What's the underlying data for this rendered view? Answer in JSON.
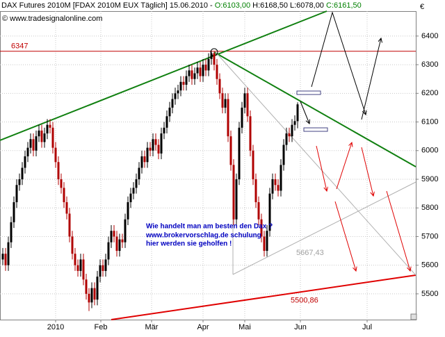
{
  "chart_data": {
    "type": "candlestick",
    "header": {
      "title": "DAX Futures 2010M [FDAX 2010M EUX  Täglich] 15.06.2010 -",
      "open_text": "O:6103,00",
      "high_low_text": "H:6168,50 L:6078,00",
      "close_text": "C:6161,50"
    },
    "copyright": "© www.tradesignalonline.com",
    "currency": "€",
    "note_lines": [
      "Wie handelt man am besten den Dax ?",
      "www.brokervorschlag.de schulung",
      "hier werden sie geholfen !"
    ],
    "up_color": "#000000",
    "down_color": "#b00000",
    "open": [
      5620,
      5640,
      5600,
      5680,
      5750,
      5820,
      5880,
      5900,
      5940,
      5980,
      6010,
      6040,
      6000,
      6050,
      6070,
      6030,
      6060,
      6090,
      6080,
      6010,
      5960,
      5900,
      5870,
      5820,
      5780,
      5700,
      5640,
      5600,
      5580,
      5620,
      5550,
      5500,
      5470,
      5520,
      5480,
      5560,
      5600,
      5580,
      5620,
      5680,
      5720,
      5700,
      5650,
      5690,
      5680,
      5760,
      5820,
      5850,
      5870,
      5900,
      5940,
      5980,
      5960,
      6010,
      6000,
      6040,
      6020,
      5990,
      6060,
      6080,
      6120,
      6150,
      6180,
      6200,
      6210,
      6240,
      6230,
      6260,
      6280,
      6250,
      6270,
      6290,
      6260,
      6300,
      6280,
      6320,
      6340,
      6300,
      6250,
      6200,
      6150,
      6180,
      6050,
      5950,
      5760,
      5900,
      6080,
      6150,
      6200,
      6120,
      6000,
      5900,
      5820,
      5760,
      5700,
      5650,
      5720,
      5850,
      5900,
      5880,
      5860,
      5950,
      6020,
      6060,
      6050,
      6090,
      6103
    ],
    "high": [
      5660,
      5660,
      5700,
      5770,
      5840,
      5900,
      5920,
      5960,
      6000,
      6030,
      6060,
      6060,
      6070,
      6090,
      6090,
      6080,
      6110,
      6110,
      6100,
      6030,
      5980,
      5920,
      5890,
      5840,
      5800,
      5720,
      5660,
      5620,
      5640,
      5640,
      5570,
      5520,
      5540,
      5540,
      5580,
      5620,
      5620,
      5640,
      5700,
      5740,
      5740,
      5720,
      5710,
      5710,
      5780,
      5840,
      5870,
      5890,
      5920,
      5960,
      6000,
      6000,
      6030,
      6030,
      6060,
      6060,
      6040,
      6080,
      6100,
      6140,
      6170,
      6200,
      6220,
      6230,
      6260,
      6260,
      6280,
      6300,
      6300,
      6290,
      6310,
      6310,
      6320,
      6320,
      6340,
      6347,
      6345,
      6320,
      6270,
      6220,
      6200,
      6200,
      6070,
      5970,
      5920,
      6100,
      6170,
      6220,
      6220,
      6140,
      6020,
      5920,
      5840,
      5780,
      5720,
      5740,
      5870,
      5920,
      5920,
      5900,
      5970,
      6040,
      6080,
      6080,
      6110,
      6123,
      6168.5
    ],
    "low": [
      5600,
      5580,
      5580,
      5660,
      5730,
      5800,
      5860,
      5880,
      5920,
      5960,
      5990,
      5980,
      5980,
      6030,
      6010,
      6010,
      6040,
      6060,
      5990,
      5940,
      5880,
      5850,
      5800,
      5760,
      5680,
      5620,
      5580,
      5560,
      5560,
      5530,
      5480,
      5440,
      5450,
      5460,
      5460,
      5540,
      5560,
      5560,
      5600,
      5660,
      5680,
      5630,
      5630,
      5660,
      5660,
      5740,
      5800,
      5830,
      5850,
      5880,
      5920,
      5940,
      5940,
      5980,
      5980,
      6000,
      5970,
      5970,
      6040,
      6060,
      6100,
      6130,
      6160,
      6180,
      6190,
      6210,
      6210,
      6240,
      6230,
      6230,
      6250,
      6240,
      6240,
      6260,
      6260,
      6300,
      6280,
      6230,
      6180,
      6130,
      6130,
      6030,
      5930,
      5740,
      5740,
      5880,
      6060,
      6130,
      6100,
      5980,
      5880,
      5800,
      5740,
      5680,
      5630,
      5630,
      5700,
      5830,
      5860,
      5840,
      5840,
      5930,
      6000,
      6030,
      6030,
      6070,
      6078
    ],
    "close": [
      5640,
      5600,
      5680,
      5750,
      5820,
      5880,
      5900,
      5940,
      5980,
      6010,
      6040,
      6000,
      6050,
      6070,
      6030,
      6060,
      6090,
      6080,
      6010,
      5960,
      5900,
      5870,
      5820,
      5780,
      5700,
      5640,
      5600,
      5580,
      5620,
      5550,
      5500,
      5470,
      5520,
      5480,
      5560,
      5600,
      5580,
      5620,
      5680,
      5720,
      5700,
      5650,
      5690,
      5680,
      5760,
      5820,
      5850,
      5870,
      5900,
      5940,
      5980,
      5960,
      6010,
      6000,
      6040,
      6020,
      5990,
      6060,
      6080,
      6120,
      6150,
      6180,
      6200,
      6210,
      6240,
      6230,
      6260,
      6280,
      6250,
      6270,
      6290,
      6260,
      6300,
      6280,
      6320,
      6340,
      6300,
      6250,
      6200,
      6150,
      6180,
      6050,
      5950,
      5760,
      5900,
      6080,
      6150,
      6200,
      6120,
      6000,
      5900,
      5820,
      5760,
      5700,
      5650,
      5720,
      5850,
      5900,
      5880,
      5860,
      5950,
      6020,
      6060,
      6050,
      6090,
      6103,
      6161.5
    ],
    "xlim": [
      0,
      149.5
    ],
    "xticks": [
      {
        "value": 20,
        "label": "2010"
      },
      {
        "value": 36.25,
        "label": "Feb"
      },
      {
        "value": 54.5,
        "label": "Mär"
      },
      {
        "value": 73,
        "label": "Apr"
      },
      {
        "value": 88,
        "label": "Mai"
      },
      {
        "value": 108,
        "label": "Jun"
      },
      {
        "value": 132,
        "label": "Jul"
      }
    ],
    "ylim": [
      5410,
      6487
    ],
    "yticks": [
      5500,
      5600,
      5700,
      5800,
      5900,
      6000,
      6100,
      6200,
      6300,
      6400
    ],
    "grid": true,
    "levels": [
      {
        "value": 6347,
        "label": "6347",
        "color": "#c00000"
      }
    ],
    "level_labels": [
      {
        "value": 5500.86,
        "label": "5500,86",
        "color": "#c00000"
      },
      {
        "value": 5667.43,
        "label": "5667,43",
        "color": "#a0a0a0"
      }
    ]
  }
}
